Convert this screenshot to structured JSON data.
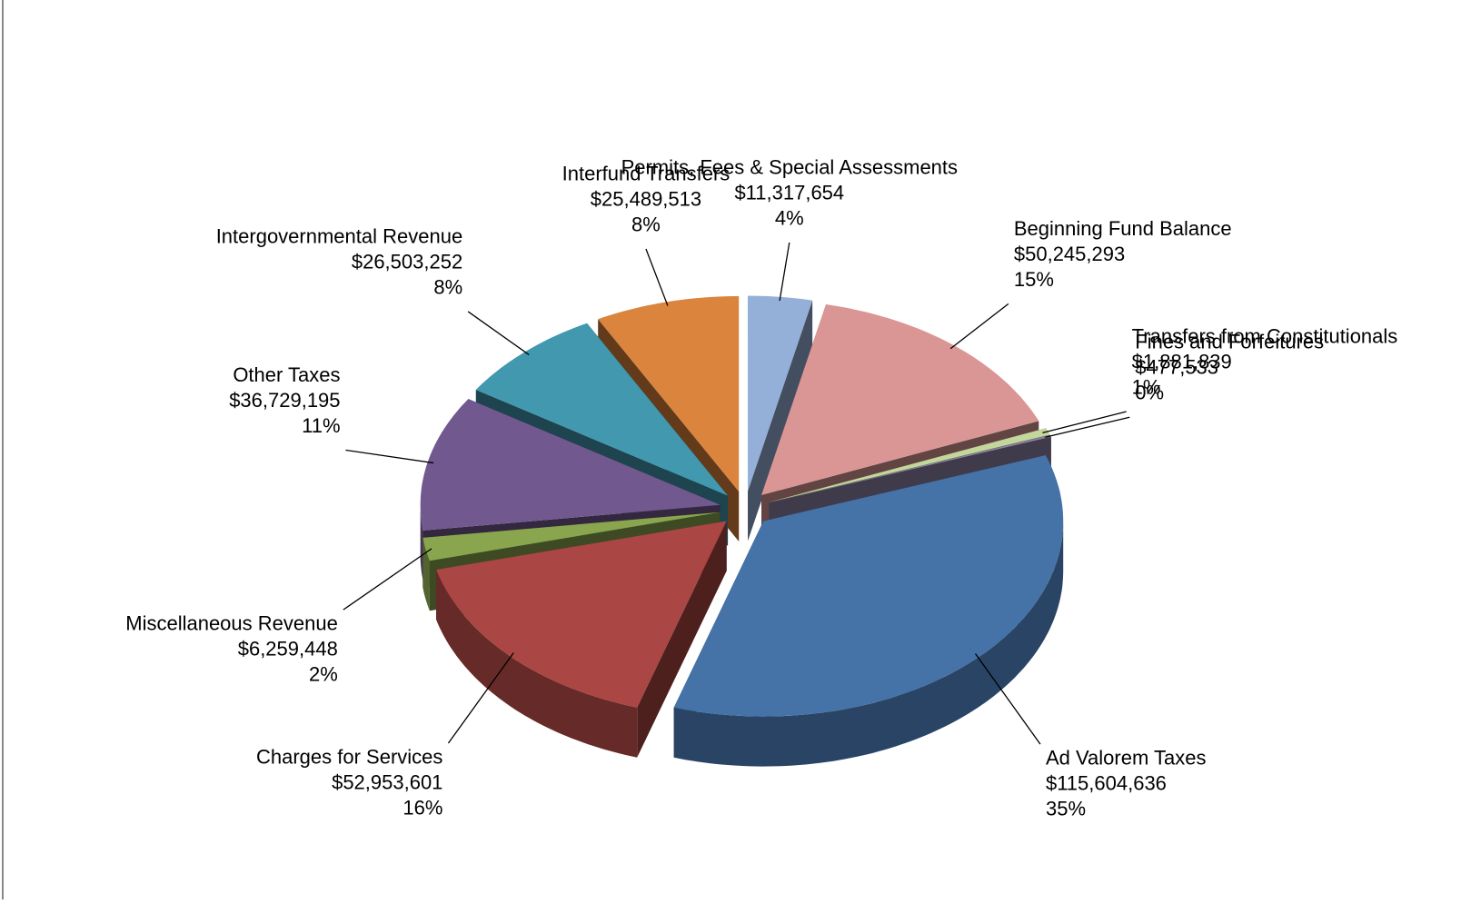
{
  "chart_data": {
    "type": "pie",
    "categories": [
      "Permits, Fees & Special Assessments",
      "Beginning Fund Balance",
      "Transfers from Constitutionals",
      "Fines and Forfeitures",
      "Ad Valorem Taxes",
      "Charges for Services",
      "Miscellaneous Revenue",
      "Other Taxes",
      "Intergovernmental Revenue",
      "Interfund Transfers"
    ],
    "values": [
      11317654,
      50245293,
      1881839,
      477533,
      115604636,
      52953601,
      6259448,
      36729195,
      26503252,
      25489513
    ],
    "value_labels": [
      "$11,317,654",
      "$50,245,293",
      "$1,881,839",
      "$477,533",
      "$115,604,636",
      "$52,953,601",
      "$6,259,448",
      "$36,729,195",
      "$26,503,252",
      "$25,489,513"
    ],
    "percent_labels": [
      "4%",
      "15%",
      "1%",
      "0%",
      "35%",
      "16%",
      "2%",
      "11%",
      "8%",
      "8%"
    ],
    "colors": [
      "#95b0d8",
      "#d99694",
      "#c3d69b",
      "#8e82a6",
      "#4572a7",
      "#aa4643",
      "#89a54e",
      "#71588f",
      "#4198af",
      "#db843d"
    ]
  }
}
